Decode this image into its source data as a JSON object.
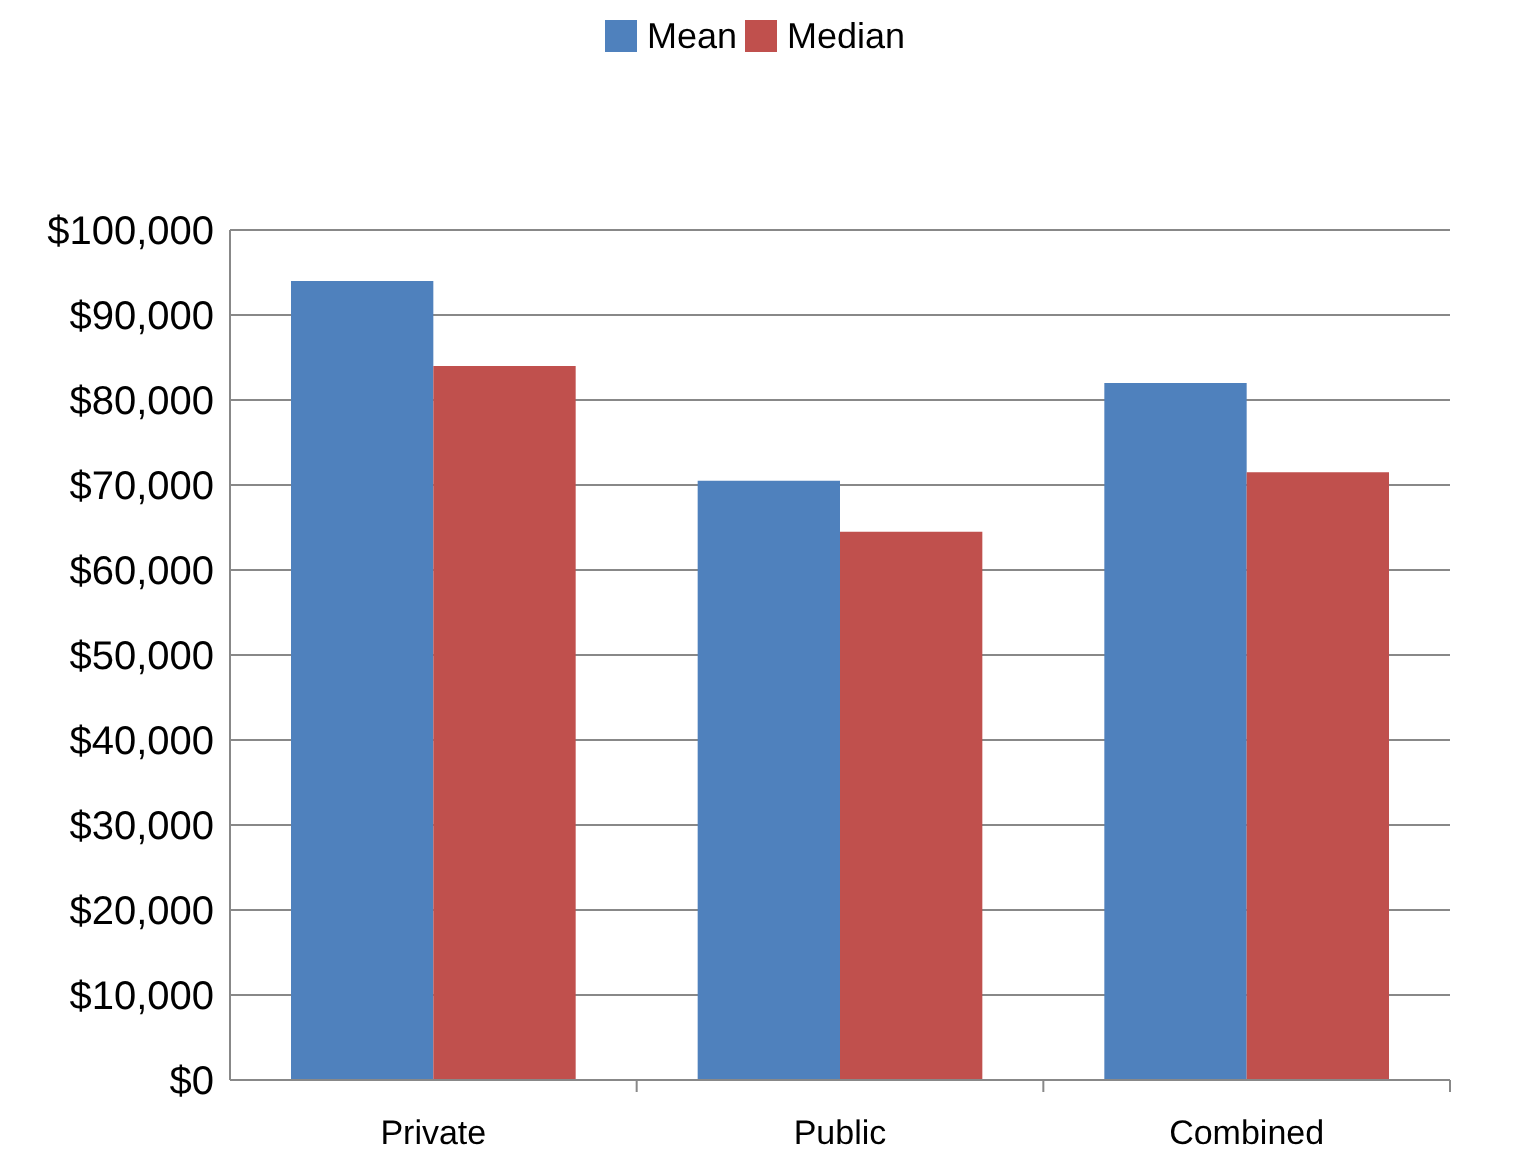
{
  "chart_data": {
    "type": "bar",
    "categories": [
      "Private",
      "Public",
      "Combined"
    ],
    "series": [
      {
        "name": "Mean",
        "color": "#4f81bd",
        "values": [
          94000,
          70500,
          82000
        ]
      },
      {
        "name": "Median",
        "color": "#c0504d",
        "values": [
          84000,
          64500,
          71500
        ]
      }
    ],
    "ylim": [
      0,
      100000
    ],
    "yticks": [
      {
        "value": 0,
        "label": "$0"
      },
      {
        "value": 10000,
        "label": "$10,000"
      },
      {
        "value": 20000,
        "label": "$20,000"
      },
      {
        "value": 30000,
        "label": "$30,000"
      },
      {
        "value": 40000,
        "label": "$40,000"
      },
      {
        "value": 50000,
        "label": "$50,000"
      },
      {
        "value": 60000,
        "label": "$60,000"
      },
      {
        "value": 70000,
        "label": "$70,000"
      },
      {
        "value": 80000,
        "label": "$80,000"
      },
      {
        "value": 90000,
        "label": "$90,000"
      },
      {
        "value": 100000,
        "label": "$100,000"
      }
    ],
    "grid": "y",
    "legend": "top"
  }
}
